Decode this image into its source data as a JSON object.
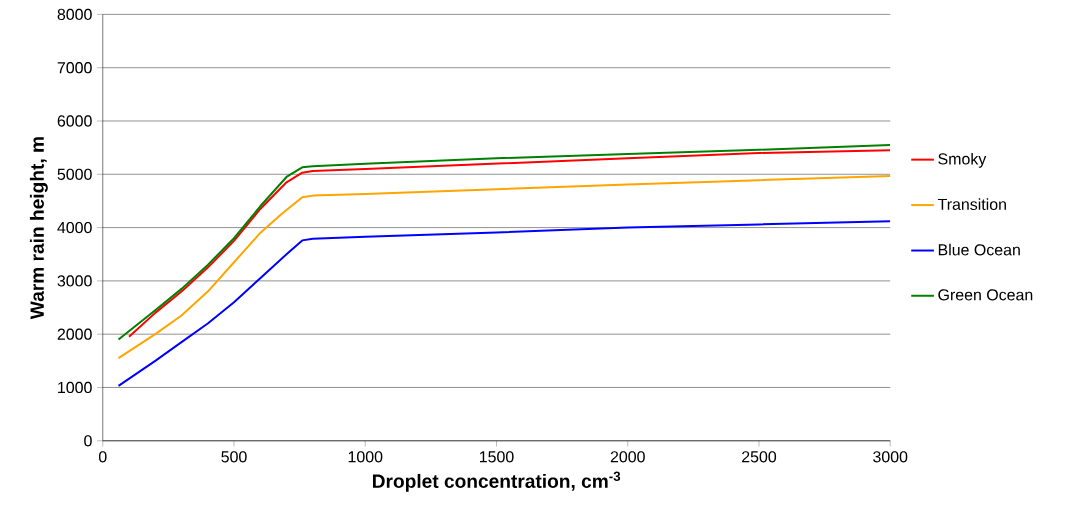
{
  "chart_data": {
    "type": "line",
    "xlabel": "Droplet concentration, cm$^{-3}$",
    "ylabel": "Warm rain height, m",
    "xlim": [
      0,
      3000
    ],
    "ylim": [
      0,
      8000
    ],
    "xticks": [
      0,
      500,
      1000,
      1500,
      2000,
      2500,
      3000
    ],
    "yticks": [
      0,
      1000,
      2000,
      3000,
      4000,
      5000,
      6000,
      7000,
      8000
    ],
    "grid": "y",
    "legend": "right",
    "marker": "none",
    "line_style": "solid",
    "series": [
      {
        "name": "Smoky",
        "color": "#ff0000",
        "x": [
          100,
          200,
          300,
          400,
          500,
          600,
          700,
          760,
          800,
          1000,
          1500,
          2000,
          2500,
          3000
        ],
        "values": [
          1950,
          2400,
          2800,
          3250,
          3750,
          4350,
          4850,
          5030,
          5060,
          5100,
          5200,
          5300,
          5400,
          5450
        ]
      },
      {
        "name": "Transition",
        "color": "#ffa500",
        "x": [
          60,
          200,
          300,
          400,
          500,
          600,
          680,
          760,
          800,
          1000,
          1500,
          2000,
          2500,
          3000
        ],
        "values": [
          1550,
          2000,
          2350,
          2800,
          3350,
          3900,
          4250,
          4570,
          4600,
          4630,
          4720,
          4810,
          4890,
          4970
        ]
      },
      {
        "name": "Blue Ocean",
        "color": "#0000ff",
        "x": [
          60,
          200,
          300,
          400,
          500,
          600,
          700,
          760,
          800,
          1000,
          1500,
          2000,
          2500,
          3000
        ],
        "values": [
          1030,
          1500,
          1850,
          2200,
          2600,
          3050,
          3500,
          3760,
          3790,
          3830,
          3910,
          4000,
          4060,
          4120
        ]
      },
      {
        "name": "Green Ocean",
        "color": "#008000",
        "x": [
          60,
          200,
          300,
          400,
          500,
          600,
          700,
          760,
          800,
          1000,
          1500,
          2000,
          2500,
          3000
        ],
        "values": [
          1900,
          2450,
          2850,
          3300,
          3800,
          4400,
          4950,
          5130,
          5150,
          5200,
          5300,
          5380,
          5460,
          5550
        ]
      }
    ]
  }
}
